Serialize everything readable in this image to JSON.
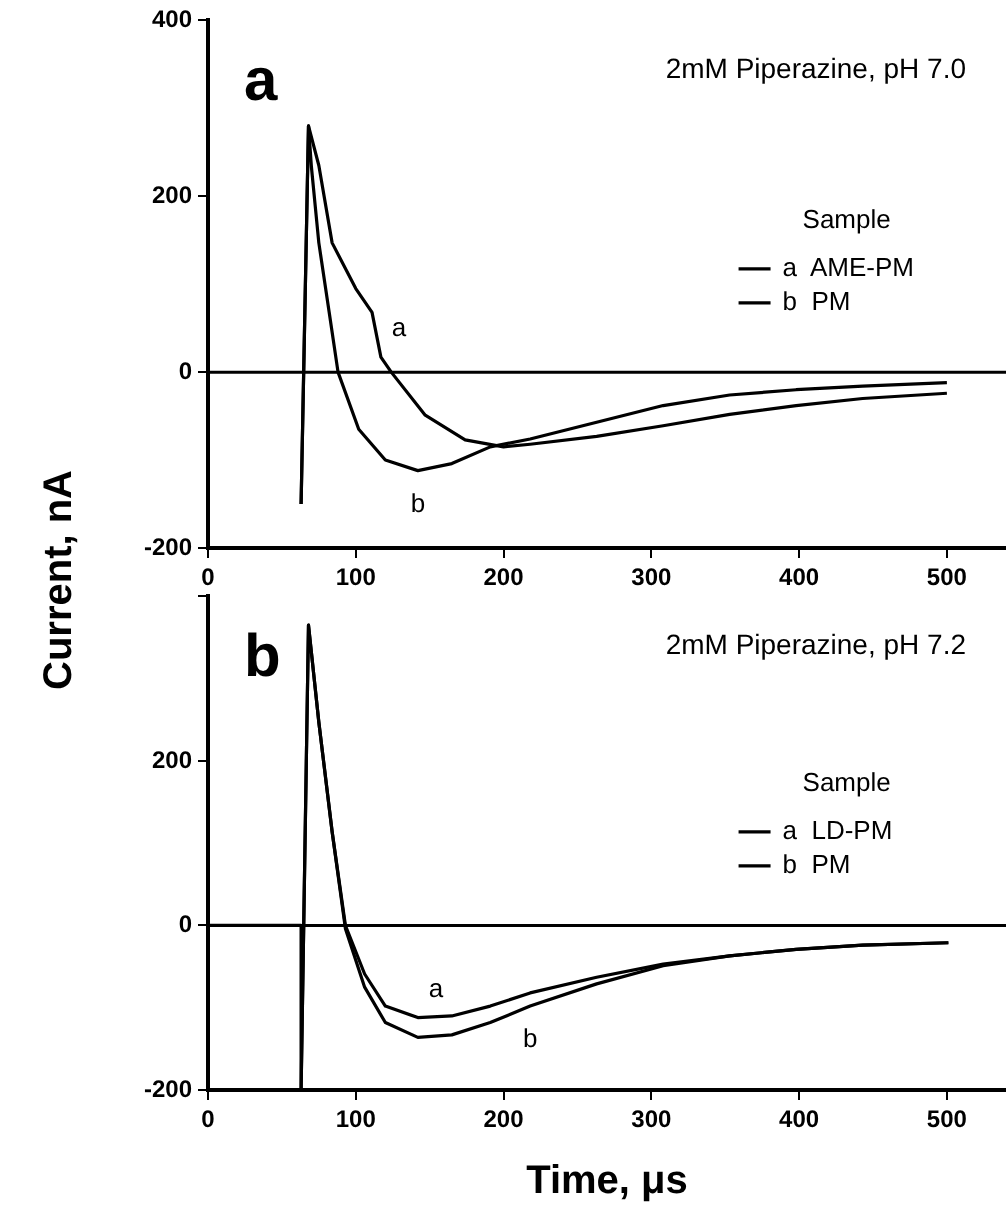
{
  "chart_data": [
    {
      "type": "line",
      "title": "a",
      "subtitle": "2mM Piperazine, pH 7.0",
      "ylabel": "Current, nA",
      "legend_title": "Sample",
      "legend": "right",
      "xlim": [
        0,
        540
      ],
      "xticks": [
        0,
        100,
        200,
        300,
        400,
        500
      ],
      "ylim": [
        -200,
        400
      ],
      "yticks": [
        -200,
        0,
        200,
        400
      ],
      "grid": false,
      "ref_lines": [
        {
          "axis": "y",
          "value": 0,
          "color": "#000000"
        }
      ],
      "annotations": [
        {
          "text": "a",
          "x": 117,
          "y": 17
        },
        {
          "text": "b",
          "x": 142,
          "y": -112
        }
      ],
      "series": [
        {
          "name": "a  AME-PM",
          "color": "#000000",
          "x": [
            63,
            68,
            75,
            84,
            100,
            111,
            117,
            124,
            147,
            174,
            200,
            218,
            263,
            308,
            353,
            398,
            443,
            500
          ],
          "values": [
            -150,
            280,
            235,
            147,
            95,
            68,
            17,
            0,
            -49,
            -77,
            -85,
            -82,
            -73,
            -61,
            -48,
            -38,
            -30,
            -24
          ]
        },
        {
          "name": "b  PM",
          "color": "#000000",
          "x": [
            63,
            68,
            70,
            75,
            82,
            88,
            102,
            120,
            142,
            165,
            191,
            218,
            263,
            308,
            353,
            398,
            443,
            500
          ],
          "values": [
            -150,
            280,
            233,
            147,
            68,
            0,
            -65,
            -100,
            -112,
            -104,
            -85,
            -76,
            -57,
            -38,
            -26,
            -20,
            -16,
            -12
          ]
        }
      ]
    },
    {
      "type": "line",
      "title": "b",
      "subtitle": "2mM Piperazine, pH 7.2",
      "xlabel": "Time, μs",
      "legend_title": "Sample",
      "legend": "right",
      "xlim": [
        0,
        540
      ],
      "xticks": [
        0,
        100,
        200,
        300,
        400,
        500
      ],
      "ylim": [
        -200,
        400
      ],
      "yticks": [
        -200,
        0,
        200,
        {
          "value": 400,
          "label": null
        }
      ],
      "grid": false,
      "ref_lines": [
        {
          "axis": "y",
          "value": 0,
          "color": "#000000"
        }
      ],
      "annotations": [
        {
          "text": "a",
          "x": 142,
          "y": -112
        },
        {
          "text": "b",
          "x": 218,
          "y": -98
        }
      ],
      "series": [
        {
          "name": "a  LD-PM",
          "color": "#000000",
          "x": [
            0,
            63,
            63,
            68,
            75,
            84,
            93,
            106,
            120,
            142,
            165,
            191,
            218,
            263,
            308,
            353,
            398,
            443,
            501
          ],
          "values": [
            0,
            0,
            -200,
            365,
            247,
            114,
            0,
            -59,
            -98,
            -112,
            -110,
            -98,
            -82,
            -63,
            -47,
            -37,
            -29,
            -24,
            -21
          ]
        },
        {
          "name": "b  PM",
          "color": "#000000",
          "x": [
            63,
            68,
            75,
            84,
            93,
            106,
            120,
            142,
            165,
            191,
            218,
            263,
            308,
            353,
            398,
            443,
            501
          ],
          "values": [
            -200,
            365,
            247,
            114,
            -4,
            -75,
            -118,
            -136,
            -133,
            -118,
            -98,
            -71,
            -49,
            -37,
            -29,
            -24,
            -21
          ]
        }
      ]
    }
  ]
}
